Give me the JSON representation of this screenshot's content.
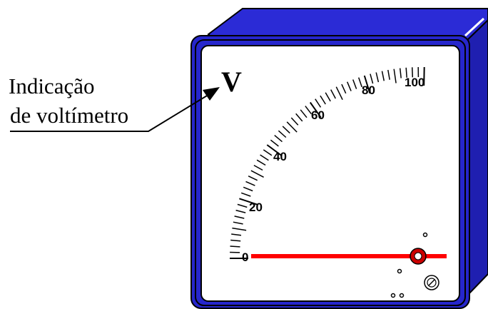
{
  "callout": {
    "line1": "Indicação",
    "line2": "de voltímetro"
  },
  "meter": {
    "unit_symbol": "V",
    "scale_labels": [
      "0",
      "20",
      "40",
      "60",
      "80",
      "100"
    ],
    "scale_min": 0,
    "scale_max": 100,
    "needle_value": 0,
    "colors": {
      "housing": "#2626cc",
      "housing_dark": "#14148a",
      "face": "#ffffff",
      "needle": "#ff0000",
      "pivot_outer": "#cc0000",
      "outline": "#000000"
    }
  }
}
